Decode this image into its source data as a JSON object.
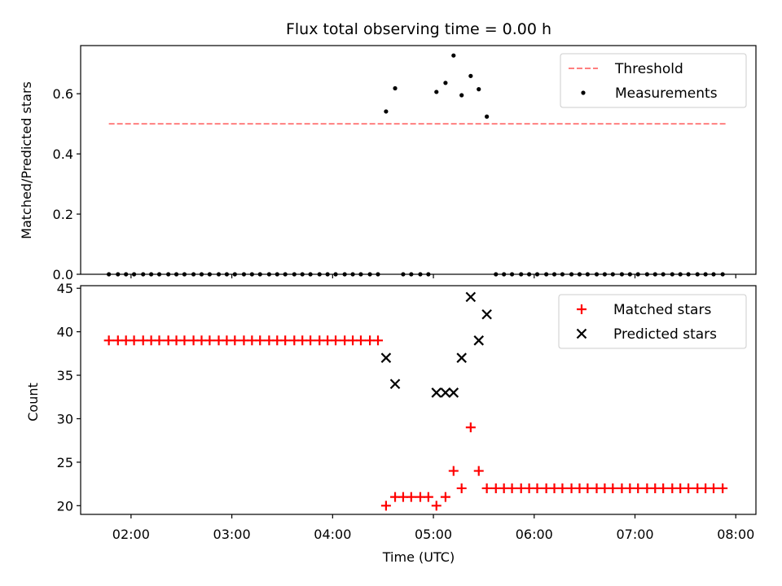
{
  "chart_data": [
    {
      "type": "scatter",
      "title": "Flux total observing time = 0.00 h",
      "ylabel": "Matched/Predicted stars",
      "xlabel": "",
      "x_unit": "hours UTC",
      "xlim": [
        1.5,
        8.2
      ],
      "ylim": [
        0,
        0.76
      ],
      "y_ticks": [
        0.0,
        0.2,
        0.4,
        0.6
      ],
      "y_tick_labels": [
        "0.0",
        "0.2",
        "0.4",
        "0.6"
      ],
      "legend_position": "top-right",
      "series": [
        {
          "name": "Threshold",
          "kind": "line",
          "style": "dashed",
          "color": "#ff7f7f",
          "x": [
            1.78,
            7.9
          ],
          "y": [
            0.5,
            0.5
          ]
        },
        {
          "name": "Measurements",
          "kind": "scatter",
          "marker": "dot",
          "color": "#000000",
          "x": [
            1.78,
            1.87,
            1.95,
            2.03,
            2.12,
            2.2,
            2.28,
            2.37,
            2.45,
            2.53,
            2.62,
            2.7,
            2.78,
            2.87,
            2.95,
            3.03,
            3.12,
            3.2,
            3.28,
            3.37,
            3.45,
            3.53,
            3.62,
            3.7,
            3.78,
            3.87,
            3.95,
            4.03,
            4.12,
            4.2,
            4.28,
            4.37,
            4.45,
            4.53,
            4.62,
            4.7,
            4.78,
            4.87,
            4.95,
            5.03,
            5.12,
            5.2,
            5.28,
            5.37,
            5.45,
            5.53,
            5.62,
            5.7,
            5.78,
            5.87,
            5.95,
            6.03,
            6.12,
            6.2,
            6.28,
            6.37,
            6.45,
            6.53,
            6.62,
            6.7,
            6.78,
            6.87,
            6.95,
            7.03,
            7.12,
            7.2,
            7.28,
            7.37,
            7.45,
            7.53,
            7.62,
            7.7,
            7.78,
            7.87
          ],
          "y": [
            0,
            0,
            0,
            0,
            0,
            0,
            0,
            0,
            0,
            0,
            0,
            0,
            0,
            0,
            0,
            0,
            0,
            0,
            0,
            0,
            0,
            0,
            0,
            0,
            0,
            0,
            0,
            0,
            0,
            0,
            0,
            0,
            0,
            0.541,
            0.618,
            0,
            0,
            0,
            0,
            0.606,
            0.636,
            0.727,
            0.595,
            0.659,
            0.615,
            0.524,
            0,
            0,
            0,
            0,
            0,
            0,
            0,
            0,
            0,
            0,
            0,
            0,
            0,
            0,
            0,
            0,
            0,
            0,
            0,
            0,
            0,
            0,
            0,
            0,
            0,
            0,
            0,
            0
          ]
        }
      ]
    },
    {
      "type": "scatter",
      "title": "",
      "xlabel": "Time (UTC)",
      "ylabel": "Count",
      "x_unit": "hours UTC",
      "xlim": [
        1.5,
        8.2
      ],
      "ylim": [
        19,
        45.3
      ],
      "x_ticks": [
        2,
        3,
        4,
        5,
        6,
        7,
        8
      ],
      "x_tick_labels": [
        "02:00",
        "03:00",
        "04:00",
        "05:00",
        "06:00",
        "07:00",
        "08:00"
      ],
      "y_ticks": [
        20,
        25,
        30,
        35,
        40,
        45
      ],
      "y_tick_labels": [
        "20",
        "25",
        "30",
        "35",
        "40",
        "45"
      ],
      "legend_position": "top-right",
      "series": [
        {
          "name": "Matched stars",
          "kind": "scatter",
          "marker": "plus",
          "color": "#ff0000",
          "x": [
            1.78,
            1.87,
            1.95,
            2.03,
            2.12,
            2.2,
            2.28,
            2.37,
            2.45,
            2.53,
            2.62,
            2.7,
            2.78,
            2.87,
            2.95,
            3.03,
            3.12,
            3.2,
            3.28,
            3.37,
            3.45,
            3.53,
            3.62,
            3.7,
            3.78,
            3.87,
            3.95,
            4.03,
            4.12,
            4.2,
            4.28,
            4.37,
            4.45,
            4.53,
            4.62,
            4.7,
            4.78,
            4.87,
            4.95,
            5.03,
            5.12,
            5.2,
            5.28,
            5.37,
            5.45,
            5.53,
            5.62,
            5.7,
            5.78,
            5.87,
            5.95,
            6.03,
            6.12,
            6.2,
            6.28,
            6.37,
            6.45,
            6.53,
            6.62,
            6.7,
            6.78,
            6.87,
            6.95,
            7.03,
            7.12,
            7.2,
            7.28,
            7.37,
            7.45,
            7.53,
            7.62,
            7.7,
            7.78,
            7.87
          ],
          "y": [
            39,
            39,
            39,
            39,
            39,
            39,
            39,
            39,
            39,
            39,
            39,
            39,
            39,
            39,
            39,
            39,
            39,
            39,
            39,
            39,
            39,
            39,
            39,
            39,
            39,
            39,
            39,
            39,
            39,
            39,
            39,
            39,
            39,
            20,
            21,
            21,
            21,
            21,
            21,
            20,
            21,
            24,
            22,
            29,
            24,
            22,
            22,
            22,
            22,
            22,
            22,
            22,
            22,
            22,
            22,
            22,
            22,
            22,
            22,
            22,
            22,
            22,
            22,
            22,
            22,
            22,
            22,
            22,
            22,
            22,
            22,
            22,
            22,
            22
          ]
        },
        {
          "name": "Predicted stars",
          "kind": "scatter",
          "marker": "x",
          "color": "#000000",
          "x": [
            4.53,
            4.62,
            5.03,
            5.12,
            5.2,
            5.28,
            5.37,
            5.45,
            5.53
          ],
          "y": [
            37,
            34,
            33,
            33,
            33,
            37,
            44,
            39,
            42
          ]
        }
      ]
    }
  ]
}
